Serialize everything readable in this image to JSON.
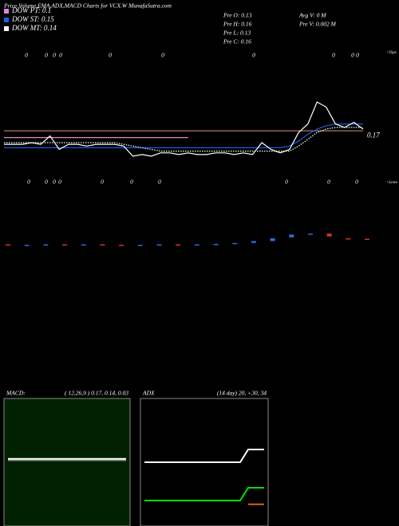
{
  "title": "Price,Volume,EMA,ADX,MACD Charts for VCX.W MunafaSutra.com",
  "info_left": [
    "Pre  O: 0.13",
    "Pre  H: 0.16",
    "Pre  L: 0.13",
    "Pre  C: 0.16"
  ],
  "info_right": [
    "Avg V: 0  M",
    "Pre  V: 0.002  M"
  ],
  "tops": {
    "label": "<Tops",
    "marks": [
      "0",
      "0",
      "0",
      "0",
      "0",
      "0",
      "0",
      "0",
      "0",
      "0"
    ]
  },
  "lows": {
    "label": "<Lows",
    "marks": [
      "0",
      "0",
      "0",
      "0",
      "0",
      "0",
      "0",
      "0",
      "0",
      "0"
    ]
  },
  "chart_data": [
    {
      "type": "line",
      "ylim": [
        0.14,
        0.22
      ],
      "last_price": {
        "value": 0.17,
        "label": "0.17"
      },
      "series": [
        {
          "color": "#b07860",
          "values": [
            0.171,
            0.171,
            0.171,
            0.171,
            0.171,
            0.171,
            0.171,
            0.171,
            0.171,
            0.171,
            0.171,
            0.171,
            0.171,
            0.171,
            0.171,
            0.171,
            0.171,
            0.171,
            0.171,
            0.171,
            0.171,
            0.171,
            0.171,
            0.171,
            0.171,
            0.171,
            0.171,
            0.171,
            0.171,
            0.171,
            0.171,
            0.171,
            0.171,
            0.171,
            0.171,
            0.171,
            0.171,
            0.171,
            0.171,
            0.171
          ]
        },
        {
          "name": "DOW PT: 0.1",
          "color": "#e080e0",
          "values": [
            0.167,
            0.167,
            0.167,
            0.167,
            0.167,
            0.167,
            0.167,
            0.167,
            0.167,
            0.167,
            0.167,
            0.167,
            0.167,
            0.167,
            0.167,
            0.167,
            0.167,
            0.167,
            0.167,
            0.167,
            0.167,
            null,
            null,
            null,
            null,
            null,
            null,
            null,
            null,
            null,
            null,
            null,
            null,
            null,
            null,
            null,
            null,
            null,
            null,
            null
          ]
        },
        {
          "name": "DOW ST: 0.15",
          "color": "#1560e0",
          "values": [
            0.161,
            0.161,
            0.161,
            0.161,
            0.161,
            0.161,
            0.161,
            0.161,
            0.161,
            0.161,
            0.161,
            0.161,
            0.161,
            0.161,
            0.161,
            0.161,
            0.161,
            0.161,
            0.161,
            0.161,
            0.161,
            0.161,
            0.161,
            0.161,
            0.161,
            0.161,
            0.161,
            0.161,
            0.161,
            0.161,
            0.161,
            0.162,
            0.165,
            0.169,
            0.172,
            0.174,
            0.175,
            0.175,
            0.175,
            0.175
          ]
        },
        {
          "name": "DOW MT: 0.14",
          "color": "#ffffff",
          "values": [
            0.164,
            0.164,
            0.164,
            0.164,
            0.164,
            0.164,
            0.164,
            0.164,
            0.164,
            0.164,
            0.164,
            0.164,
            0.164,
            0.163,
            0.162,
            0.161,
            0.16,
            0.159,
            0.159,
            0.159,
            0.159,
            0.159,
            0.159,
            0.159,
            0.159,
            0.159,
            0.159,
            0.159,
            0.159,
            0.159,
            0.159,
            0.159,
            0.162,
            0.166,
            0.17,
            0.172,
            0.173,
            0.173,
            0.173,
            0.173
          ]
        },
        {
          "color": "#ffffff",
          "values": [
            0.163,
            0.163,
            0.163,
            0.164,
            0.163,
            0.168,
            0.16,
            0.163,
            0.163,
            0.162,
            0.163,
            0.163,
            0.163,
            0.162,
            0.156,
            0.157,
            0.156,
            0.158,
            0.158,
            0.157,
            0.158,
            0.157,
            0.157,
            0.158,
            0.158,
            0.157,
            0.158,
            0.157,
            0.164,
            0.16,
            0.158,
            0.16,
            0.17,
            0.175,
            0.188,
            0.185,
            0.175,
            0.173,
            0.176,
            0.172
          ]
        }
      ]
    },
    {
      "type": "candlestick",
      "ylim": [
        0.14,
        0.2
      ],
      "up_color": "#2a6ee0",
      "down_color": "#e03020",
      "open": [
        0.163,
        0.162,
        0.162,
        0.163,
        0.162,
        0.163,
        0.162,
        0.161,
        0.162,
        0.163,
        0.162,
        0.163,
        0.164,
        0.166,
        0.17,
        0.178,
        0.184,
        0.186,
        0.176,
        0.175
      ],
      "close": [
        0.162,
        0.162,
        0.163,
        0.162,
        0.163,
        0.162,
        0.161,
        0.162,
        0.163,
        0.162,
        0.163,
        0.164,
        0.166,
        0.17,
        0.176,
        0.184,
        0.186,
        0.18,
        0.175,
        0.173
      ]
    },
    {
      "type": "line",
      "title": "MACD:",
      "subtitle": "( 12,26,9 ) 0.17, 0.14, 0.03",
      "background": "#002200",
      "ylim": [
        -1.2,
        1.4
      ],
      "series": [
        {
          "color": "#888888",
          "values": [
            0.14,
            0.14,
            0.14,
            0.14,
            0.14,
            0.14,
            0.14,
            0.14,
            0.14,
            0.14,
            0.14,
            0.14
          ]
        },
        {
          "color": "#ffffff",
          "values": [
            0.17,
            0.17,
            0.17,
            0.17,
            0.17,
            0.17,
            0.17,
            0.17,
            0.17,
            0.17,
            0.17,
            0.17
          ]
        }
      ]
    },
    {
      "type": "line",
      "title": "ADX",
      "subtitle": "(14  day) 20, +30, 34",
      "background": "#000000",
      "ylim": [
        0,
        100
      ],
      "series": [
        {
          "color": "#ffffff",
          "values": [
            50,
            50,
            50,
            50,
            50,
            50,
            50,
            50,
            50,
            50,
            50,
            50,
            50,
            60,
            60,
            60
          ]
        },
        {
          "color": "#00e000",
          "values": [
            20,
            20,
            20,
            20,
            20,
            20,
            20,
            20,
            20,
            20,
            20,
            20,
            20,
            30,
            30,
            30
          ]
        },
        {
          "color": "#e06010",
          "values": [
            null,
            null,
            null,
            null,
            null,
            null,
            null,
            null,
            null,
            null,
            null,
            null,
            null,
            17,
            17,
            17
          ]
        }
      ]
    }
  ]
}
